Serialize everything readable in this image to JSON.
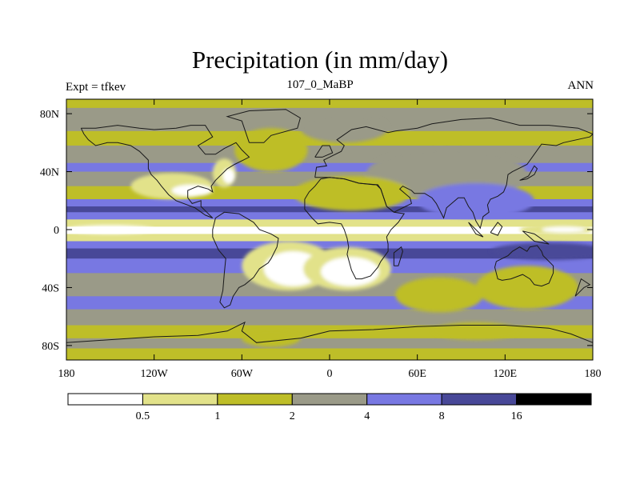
{
  "chart_data": {
    "type": "heatmap",
    "title": "Precipitation (in mm/day)",
    "subtitle_left": "Expt = tfkev",
    "subtitle_center": "107_0_MaBP",
    "subtitle_right": "ANN",
    "xlim": [
      -180,
      180
    ],
    "ylim": [
      -90,
      90
    ],
    "x_ticks": [
      {
        "value": -180,
        "label": "180"
      },
      {
        "value": -120,
        "label": "120W"
      },
      {
        "value": -60,
        "label": "60W"
      },
      {
        "value": 0,
        "label": "0"
      },
      {
        "value": 60,
        "label": "60E"
      },
      {
        "value": 120,
        "label": "120E"
      },
      {
        "value": 180,
        "label": "180"
      }
    ],
    "y_ticks": [
      {
        "value": 80,
        "label": "80N"
      },
      {
        "value": 40,
        "label": "40N"
      },
      {
        "value": 0,
        "label": "0"
      },
      {
        "value": -40,
        "label": "40S"
      },
      {
        "value": -80,
        "label": "80S"
      }
    ],
    "colorbar": {
      "levels": [
        "0.5",
        "1",
        "2",
        "4",
        "8",
        "16"
      ],
      "colors": [
        "#ffffff",
        "#e2e28a",
        "#bebe28",
        "#9a9a88",
        "#7878e2",
        "#484898",
        "#000000"
      ]
    },
    "bands": [
      {
        "lat_top": 90,
        "lat_bottom": 84,
        "level": 2
      },
      {
        "lat_top": 84,
        "lat_bottom": 68,
        "level": 3
      },
      {
        "lat_top": 68,
        "lat_bottom": 58,
        "level": 2
      },
      {
        "lat_top": 58,
        "lat_bottom": 46,
        "level": 3
      },
      {
        "lat_top": 46,
        "lat_bottom": 40,
        "level": 4
      },
      {
        "lat_top": 40,
        "lat_bottom": 30,
        "level": 3
      },
      {
        "lat_top": 30,
        "lat_bottom": 21,
        "level": 2
      },
      {
        "lat_top": 21,
        "lat_bottom": 16,
        "level": 4
      },
      {
        "lat_top": 16,
        "lat_bottom": 12,
        "level": 5
      },
      {
        "lat_top": 12,
        "lat_bottom": 7,
        "level": 4
      },
      {
        "lat_top": 7,
        "lat_bottom": 2,
        "level": 1
      },
      {
        "lat_top": 2,
        "lat_bottom": -3,
        "level": 0
      },
      {
        "lat_top": -3,
        "lat_bottom": -8,
        "level": 1
      },
      {
        "lat_top": -8,
        "lat_bottom": -13,
        "level": 4
      },
      {
        "lat_top": -13,
        "lat_bottom": -20,
        "level": 5
      },
      {
        "lat_top": -20,
        "lat_bottom": -30,
        "level": 4
      },
      {
        "lat_top": -30,
        "lat_bottom": -46,
        "level": 3
      },
      {
        "lat_top": -46,
        "lat_bottom": -55,
        "level": 4
      },
      {
        "lat_top": -55,
        "lat_bottom": -66,
        "level": 3
      },
      {
        "lat_top": -66,
        "lat_bottom": -75,
        "level": 2
      },
      {
        "lat_top": -75,
        "lat_bottom": -82,
        "level": 3
      },
      {
        "lat_top": -82,
        "lat_bottom": -90,
        "level": 2
      }
    ],
    "patches": [
      {
        "lon": -108,
        "lat": 30,
        "rx": 28,
        "ry": 9,
        "level": 1
      },
      {
        "lon": -94,
        "lat": 27,
        "rx": 14,
        "ry": 4,
        "level": 0
      },
      {
        "lon": -72,
        "lat": 39,
        "rx": 8,
        "ry": 10,
        "level": 1
      },
      {
        "lon": -69,
        "lat": 37,
        "rx": 4,
        "ry": 5,
        "level": 0
      },
      {
        "lon": -40,
        "lat": 55,
        "rx": 25,
        "ry": 15,
        "level": 2
      },
      {
        "lon": 10,
        "lat": 70,
        "rx": 30,
        "ry": 10,
        "level": 3
      },
      {
        "lon": 80,
        "lat": 38,
        "rx": 55,
        "ry": 18,
        "level": 3
      },
      {
        "lon": 100,
        "lat": 20,
        "rx": 40,
        "ry": 12,
        "level": 4
      },
      {
        "lon": 15,
        "lat": 25,
        "rx": 40,
        "ry": 12,
        "level": 2
      },
      {
        "lon": -28,
        "lat": -25,
        "rx": 32,
        "ry": 17,
        "level": 1
      },
      {
        "lon": -25,
        "lat": -27,
        "rx": 20,
        "ry": 12,
        "level": 0
      },
      {
        "lon": 12,
        "lat": -27,
        "rx": 30,
        "ry": 15,
        "level": 1
      },
      {
        "lon": 14,
        "lat": -29,
        "rx": 20,
        "ry": 10,
        "level": 0
      },
      {
        "lon": 75,
        "lat": -45,
        "rx": 30,
        "ry": 12,
        "level": 2
      },
      {
        "lon": 135,
        "lat": -40,
        "rx": 35,
        "ry": 15,
        "level": 2
      },
      {
        "lon": 150,
        "lat": -15,
        "rx": 40,
        "ry": 6,
        "level": 5
      },
      {
        "lon": 155,
        "lat": 0,
        "rx": 25,
        "ry": 4,
        "level": 1
      },
      {
        "lon": 160,
        "lat": 0,
        "rx": 15,
        "ry": 2,
        "level": 0
      },
      {
        "lon": -150,
        "lat": 0,
        "rx": 30,
        "ry": 3,
        "level": 0
      },
      {
        "lon": -40,
        "lat": -75,
        "rx": 20,
        "ry": 6,
        "level": 2
      },
      {
        "lon": 100,
        "lat": -70,
        "rx": 30,
        "ry": 6,
        "level": 2
      }
    ],
    "coastlines": [
      [
        [
          -170,
          70
        ],
        [
          -160,
          70
        ],
        [
          -145,
          72
        ],
        [
          -130,
          70
        ],
        [
          -120,
          69
        ],
        [
          -105,
          70
        ],
        [
          -95,
          72
        ],
        [
          -85,
          72
        ],
        [
          -80,
          64
        ],
        [
          -90,
          58
        ],
        [
          -85,
          52
        ],
        [
          -78,
          52
        ],
        [
          -72,
          56
        ],
        [
          -64,
          60
        ],
        [
          -60,
          55
        ],
        [
          -55,
          50
        ],
        [
          -65,
          45
        ],
        [
          -70,
          42
        ],
        [
          -74,
          38
        ],
        [
          -78,
          34
        ],
        [
          -81,
          30
        ],
        [
          -80,
          26
        ],
        [
          -83,
          28
        ],
        [
          -90,
          30
        ],
        [
          -97,
          27
        ],
        [
          -97,
          22
        ],
        [
          -94,
          18
        ],
        [
          -88,
          20
        ],
        [
          -88,
          16
        ],
        [
          -84,
          12
        ],
        [
          -80,
          8
        ],
        [
          -85,
          10
        ],
        [
          -92,
          15
        ],
        [
          -105,
          20
        ],
        [
          -110,
          24
        ],
        [
          -115,
          30
        ],
        [
          -118,
          34
        ],
        [
          -122,
          38
        ],
        [
          -124,
          42
        ],
        [
          -124,
          48
        ],
        [
          -130,
          54
        ],
        [
          -136,
          58
        ],
        [
          -145,
          60
        ],
        [
          -152,
          60
        ],
        [
          -160,
          58
        ],
        [
          -165,
          62
        ],
        [
          -168,
          66
        ],
        [
          -170,
          70
        ]
      ],
      [
        [
          -78,
          8
        ],
        [
          -72,
          12
        ],
        [
          -62,
          11
        ],
        [
          -52,
          5
        ],
        [
          -48,
          0
        ],
        [
          -40,
          -3
        ],
        [
          -35,
          -6
        ],
        [
          -36,
          -12
        ],
        [
          -40,
          -20
        ],
        [
          -42,
          -23
        ],
        [
          -48,
          -27
        ],
        [
          -52,
          -33
        ],
        [
          -58,
          -38
        ],
        [
          -62,
          -40
        ],
        [
          -66,
          -46
        ],
        [
          -68,
          -52
        ],
        [
          -72,
          -54
        ],
        [
          -75,
          -50
        ],
        [
          -73,
          -42
        ],
        [
          -72,
          -30
        ],
        [
          -71,
          -20
        ],
        [
          -76,
          -14
        ],
        [
          -80,
          -5
        ],
        [
          -80,
          0
        ],
        [
          -78,
          8
        ]
      ],
      [
        [
          -55,
          60
        ],
        [
          -45,
          60
        ],
        [
          -40,
          65
        ],
        [
          -22,
          70
        ],
        [
          -20,
          77
        ],
        [
          -30,
          83
        ],
        [
          -55,
          82
        ],
        [
          -70,
          78
        ],
        [
          -60,
          75
        ],
        [
          -55,
          60
        ]
      ],
      [
        [
          -10,
          36
        ],
        [
          -9,
          43
        ],
        [
          -2,
          44
        ],
        [
          -4,
          48
        ],
        [
          2,
          51
        ],
        [
          8,
          54
        ],
        [
          10,
          58
        ],
        [
          5,
          62
        ],
        [
          15,
          69
        ],
        [
          25,
          71
        ],
        [
          40,
          67
        ],
        [
          45,
          68
        ],
        [
          60,
          70
        ],
        [
          70,
          73
        ],
        [
          90,
          76
        ],
        [
          110,
          77
        ],
        [
          130,
          72
        ],
        [
          150,
          72
        ],
        [
          170,
          70
        ],
        [
          180,
          66
        ],
        [
          178,
          64
        ],
        [
          160,
          60
        ],
        [
          155,
          58
        ],
        [
          145,
          59
        ],
        [
          140,
          52
        ],
        [
          135,
          45
        ],
        [
          129,
          42
        ],
        [
          125,
          40
        ],
        [
          122,
          38
        ],
        [
          121,
          31
        ],
        [
          119,
          26
        ],
        [
          115,
          23
        ],
        [
          110,
          21
        ],
        [
          108,
          17
        ],
        [
          109,
          12
        ],
        [
          105,
          9
        ],
        [
          103,
          1
        ],
        [
          100,
          6
        ],
        [
          98,
          12
        ],
        [
          95,
          16
        ],
        [
          92,
          22
        ],
        [
          88,
          22
        ],
        [
          80,
          15
        ],
        [
          78,
          8
        ],
        [
          73,
          18
        ],
        [
          70,
          22
        ],
        [
          65,
          25
        ],
        [
          58,
          25
        ],
        [
          56,
          27
        ],
        [
          50,
          30
        ],
        [
          48,
          28
        ],
        [
          55,
          22
        ],
        [
          56,
          18
        ],
        [
          52,
          16
        ],
        [
          44,
          12
        ],
        [
          39,
          16
        ],
        [
          35,
          28
        ],
        [
          33,
          31
        ],
        [
          30,
          31
        ],
        [
          20,
          32
        ],
        [
          10,
          35
        ],
        [
          0,
          36
        ],
        [
          -5,
          36
        ],
        [
          -10,
          36
        ]
      ],
      [
        [
          -17,
          21
        ],
        [
          -17,
          14
        ],
        [
          -12,
          8
        ],
        [
          -8,
          4
        ],
        [
          0,
          5
        ],
        [
          8,
          4
        ],
        [
          10,
          0
        ],
        [
          12,
          -6
        ],
        [
          13,
          -12
        ],
        [
          12,
          -17
        ],
        [
          15,
          -28
        ],
        [
          18,
          -34
        ],
        [
          22,
          -34
        ],
        [
          28,
          -32
        ],
        [
          33,
          -26
        ],
        [
          35,
          -22
        ],
        [
          40,
          -15
        ],
        [
          40,
          -10
        ],
        [
          39,
          -5
        ],
        [
          42,
          0
        ],
        [
          47,
          5
        ],
        [
          51,
          11
        ],
        [
          44,
          12
        ],
        [
          39,
          16
        ],
        [
          35,
          28
        ],
        [
          32,
          31
        ],
        [
          20,
          32
        ],
        [
          10,
          35
        ],
        [
          0,
          36
        ],
        [
          -6,
          35
        ],
        [
          -10,
          30
        ],
        [
          -14,
          26
        ],
        [
          -17,
          21
        ]
      ],
      [
        [
          114,
          -22
        ],
        [
          113,
          -26
        ],
        [
          115,
          -34
        ],
        [
          118,
          -35
        ],
        [
          124,
          -34
        ],
        [
          132,
          -31
        ],
        [
          137,
          -34
        ],
        [
          140,
          -38
        ],
        [
          145,
          -39
        ],
        [
          150,
          -37
        ],
        [
          153,
          -30
        ],
        [
          153,
          -25
        ],
        [
          150,
          -22
        ],
        [
          146,
          -18
        ],
        [
          145,
          -15
        ],
        [
          142,
          -11
        ],
        [
          137,
          -12
        ],
        [
          135,
          -15
        ],
        [
          130,
          -12
        ],
        [
          125,
          -15
        ],
        [
          122,
          -18
        ],
        [
          114,
          -22
        ]
      ],
      [
        [
          44,
          -25
        ],
        [
          47,
          -25
        ],
        [
          50,
          -15
        ],
        [
          49,
          -12
        ],
        [
          44,
          -16
        ],
        [
          44,
          -25
        ]
      ],
      [
        [
          -180,
          -78
        ],
        [
          -150,
          -76
        ],
        [
          -120,
          -74
        ],
        [
          -90,
          -73
        ],
        [
          -70,
          -70
        ],
        [
          -60,
          -65
        ],
        [
          -58,
          -64
        ],
        [
          -60,
          -70
        ],
        [
          -50,
          -78
        ],
        [
          -20,
          -75
        ],
        [
          0,
          -70
        ],
        [
          30,
          -69
        ],
        [
          60,
          -67
        ],
        [
          90,
          -66
        ],
        [
          120,
          -66
        ],
        [
          150,
          -68
        ],
        [
          165,
          -72
        ],
        [
          180,
          -78
        ]
      ],
      [
        [
          -10,
          50
        ],
        [
          -5,
          58
        ],
        [
          0,
          58
        ],
        [
          2,
          53
        ],
        [
          -5,
          50
        ],
        [
          -10,
          50
        ]
      ],
      [
        [
          130,
          34
        ],
        [
          135,
          35
        ],
        [
          140,
          38
        ],
        [
          142,
          42
        ],
        [
          140,
          44
        ],
        [
          136,
          37
        ],
        [
          130,
          34
        ]
      ],
      [
        [
          95,
          5
        ],
        [
          100,
          0
        ],
        [
          105,
          -5
        ],
        [
          100,
          -3
        ],
        [
          95,
          5
        ]
      ],
      [
        [
          110,
          -2
        ],
        [
          115,
          -4
        ],
        [
          118,
          2
        ],
        [
          115,
          5
        ],
        [
          110,
          -2
        ]
      ],
      [
        [
          132,
          -1
        ],
        [
          140,
          -3
        ],
        [
          150,
          -10
        ],
        [
          140,
          -8
        ],
        [
          132,
          -1
        ]
      ],
      [
        [
          168,
          -46
        ],
        [
          174,
          -40
        ],
        [
          178,
          -38
        ],
        [
          172,
          -34
        ],
        [
          168,
          -46
        ]
      ]
    ]
  }
}
